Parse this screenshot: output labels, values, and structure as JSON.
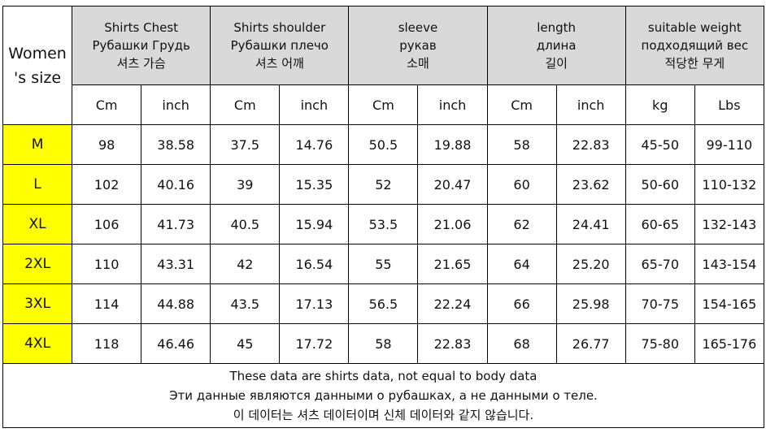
{
  "table": {
    "corner": [
      "Women",
      "'s size"
    ],
    "groups": [
      {
        "lines": [
          "Shirts Chest",
          "Рубашки Грудь",
          "셔츠 가슴"
        ],
        "units": [
          "Cm",
          "inch"
        ]
      },
      {
        "lines": [
          "Shirts shoulder",
          "Рубашки плечо",
          "셔츠 어깨"
        ],
        "units": [
          "Cm",
          "inch"
        ]
      },
      {
        "lines": [
          "sleeve",
          "рукав",
          "소매"
        ],
        "units": [
          "Cm",
          "inch"
        ]
      },
      {
        "lines": [
          "length",
          "длина",
          "길이"
        ],
        "units": [
          "Cm",
          "inch"
        ]
      },
      {
        "lines": [
          "suitable weight",
          "подходящий вес",
          "적당한 무게"
        ],
        "units": [
          "kg",
          "Lbs"
        ]
      }
    ],
    "rows": [
      [
        "M",
        "98",
        "38.58",
        "37.5",
        "14.76",
        "50.5",
        "19.88",
        "58",
        "22.83",
        "45-50",
        "99-110"
      ],
      [
        "L",
        "102",
        "40.16",
        "39",
        "15.35",
        "52",
        "20.47",
        "60",
        "23.62",
        "50-60",
        "110-132"
      ],
      [
        "XL",
        "106",
        "41.73",
        "40.5",
        "15.94",
        "53.5",
        "21.06",
        "62",
        "24.41",
        "60-65",
        "132-143"
      ],
      [
        "2XL",
        "110",
        "43.31",
        "42",
        "16.54",
        "55",
        "21.65",
        "64",
        "25.20",
        "65-70",
        "143-154"
      ],
      [
        "3XL",
        "114",
        "44.88",
        "43.5",
        "17.13",
        "56.5",
        "22.24",
        "66",
        "25.98",
        "70-75",
        "154-165"
      ],
      [
        "4XL",
        "118",
        "46.46",
        "45",
        "17.72",
        "58",
        "22.83",
        "68",
        "26.77",
        "75-80",
        "165-176"
      ]
    ],
    "note": [
      "These data are shirts data, not equal to body data",
      "Эти данные являются данными о рубашках, а не данными о теле.",
      "이 데이터는 셔츠 데이터이며 신체 데이터와 같지 않습니다."
    ]
  }
}
